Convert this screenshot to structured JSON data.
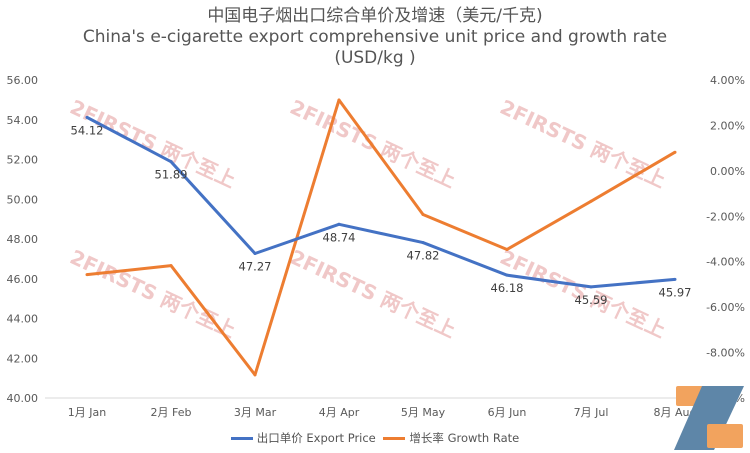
{
  "chart_data": {
    "type": "line",
    "title_cn": "中国电子烟出口综合单价及增速（美元/千克)",
    "title_en": "China's e-cigarette export comprehensive unit price and growth rate",
    "title_unit": "(USD/kg )",
    "categories": [
      "1月 Jan",
      "2月 Feb",
      "3月 Mar",
      "4月 Apr",
      "5月 May",
      "6月 Jun",
      "7月 Jul",
      "8月 Aug"
    ],
    "left_axis": {
      "min": 40,
      "max": 56,
      "step": 2,
      "ticks": [
        "40.00",
        "42.00",
        "44.00",
        "46.00",
        "48.00",
        "50.00",
        "52.00",
        "54.00",
        "56.00"
      ]
    },
    "right_axis": {
      "min": -10,
      "max": 4,
      "step": 2,
      "ticks": [
        "-10.00%",
        "-8.00%",
        "-6.00%",
        "-4.00%",
        "-2.00%",
        "0.00%",
        "2.00%",
        "4.00%"
      ]
    },
    "series": [
      {
        "name": "出口单价 Export Price",
        "axis": "left",
        "color": "#4472C4",
        "values": [
          54.12,
          51.89,
          47.27,
          48.74,
          47.82,
          46.18,
          45.59,
          45.97
        ],
        "labels": [
          "54.12",
          "51.89",
          "47.27",
          "48.74",
          "47.82",
          "46.18",
          "45.59",
          "45.97"
        ]
      },
      {
        "name": "增长率 Growth Rate",
        "axis": "right",
        "color": "#ED7D31",
        "values": [
          -4.57,
          -4.17,
          -8.98,
          3.12,
          -1.92,
          -3.46,
          -1.34,
          0.82
        ]
      }
    ],
    "legend_position": "bottom",
    "grid": false
  },
  "watermark": "2FIRSTS 两个至上"
}
